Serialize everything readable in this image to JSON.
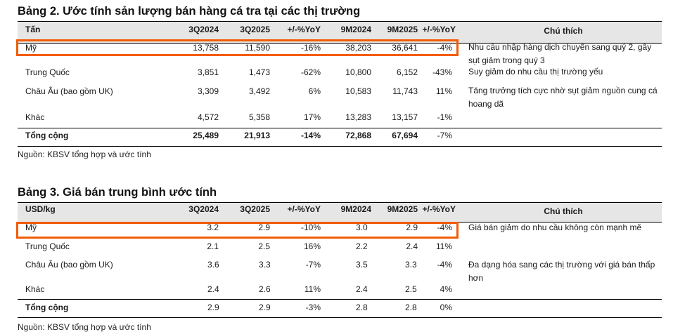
{
  "accent_color": "#f25c05",
  "table2": {
    "title": "Bảng 2. Ước tính sản lượng bán hàng cá tra tại các thị trường",
    "headers": [
      "Tấn",
      "3Q2024",
      "3Q2025",
      "+/-%YoY",
      "9M2024",
      "9M2025",
      "+/-%YoY",
      "Chú thích"
    ],
    "rows": [
      {
        "market": "Mỹ",
        "q3_2024": "13,758",
        "q3_2025": "11,590",
        "q_yoy": "-16%",
        "m9_2024": "38,203",
        "m9_2025": "36,641",
        "m9_yoy": "-4%",
        "note": "Nhu cầu nhập hàng dịch chuyển sang quý 2, gây sụt giảm trong quý 3",
        "highlighted": true
      },
      {
        "market": "Trung Quốc",
        "q3_2024": "3,851",
        "q3_2025": "1,473",
        "q_yoy": "-62%",
        "m9_2024": "10,800",
        "m9_2025": "6,152",
        "m9_yoy": "-43%",
        "note": "Suy giảm do nhu cầu thị trường yếu"
      },
      {
        "market": "Châu Âu (bao gồm UK)",
        "q3_2024": "3,309",
        "q3_2025": "3,492",
        "q_yoy": "6%",
        "m9_2024": "10,583",
        "m9_2025": "11,743",
        "m9_yoy": "11%",
        "note": "Tăng trưởng tích cực nhờ sụt giảm nguồn cung cá hoang dã"
      },
      {
        "market": "Khác",
        "q3_2024": "4,572",
        "q3_2025": "5,358",
        "q_yoy": "17%",
        "m9_2024": "13,283",
        "m9_2025": "13,157",
        "m9_yoy": "-1%",
        "note": ""
      }
    ],
    "total": {
      "market": "Tổng cộng",
      "q3_2024": "25,489",
      "q3_2025": "21,913",
      "q_yoy": "-14%",
      "m9_2024": "72,868",
      "m9_2025": "67,694",
      "m9_yoy": "-7%"
    },
    "source": "Nguồn: KBSV tổng hợp và ước tính"
  },
  "table3": {
    "title": "Bảng 3. Giá bán trung bình ước tính",
    "headers": [
      "USD/kg",
      "3Q2024",
      "3Q2025",
      "+/-%YoY",
      "9M2024",
      "9M2025",
      "+/-%YoY",
      "Chú thích"
    ],
    "rows": [
      {
        "market": "Mỹ",
        "q3_2024": "3.2",
        "q3_2025": "2.9",
        "q_yoy": "-10%",
        "m9_2024": "3.0",
        "m9_2025": "2.9",
        "m9_yoy": "-4%",
        "note": "Giá bán giảm do nhu cầu không còn mạnh mẽ",
        "highlighted": true
      },
      {
        "market": "Trung Quốc",
        "q3_2024": "2.1",
        "q3_2025": "2.5",
        "q_yoy": "16%",
        "m9_2024": "2.2",
        "m9_2025": "2.4",
        "m9_yoy": "11%",
        "note": ""
      },
      {
        "market": "Châu Âu (bao gồm UK)",
        "q3_2024": "3.6",
        "q3_2025": "3.3",
        "q_yoy": "-7%",
        "m9_2024": "3.5",
        "m9_2025": "3.3",
        "m9_yoy": "-4%",
        "note": "Đa dạng hóa sang các thị trường với giá bán thấp hơn"
      },
      {
        "market": "Khác",
        "q3_2024": "2.4",
        "q3_2025": "2.6",
        "q_yoy": "11%",
        "m9_2024": "2.4",
        "m9_2025": "2.5",
        "m9_yoy": "4%",
        "note": ""
      }
    ],
    "total": {
      "market": "Tổng cộng",
      "q3_2024": "2.9",
      "q3_2025": "2.9",
      "q_yoy": "-3%",
      "m9_2024": "2.8",
      "m9_2025": "2.8",
      "m9_yoy": "0%"
    },
    "source": "Nguồn: KBSV tổng hợp và ước tính"
  }
}
